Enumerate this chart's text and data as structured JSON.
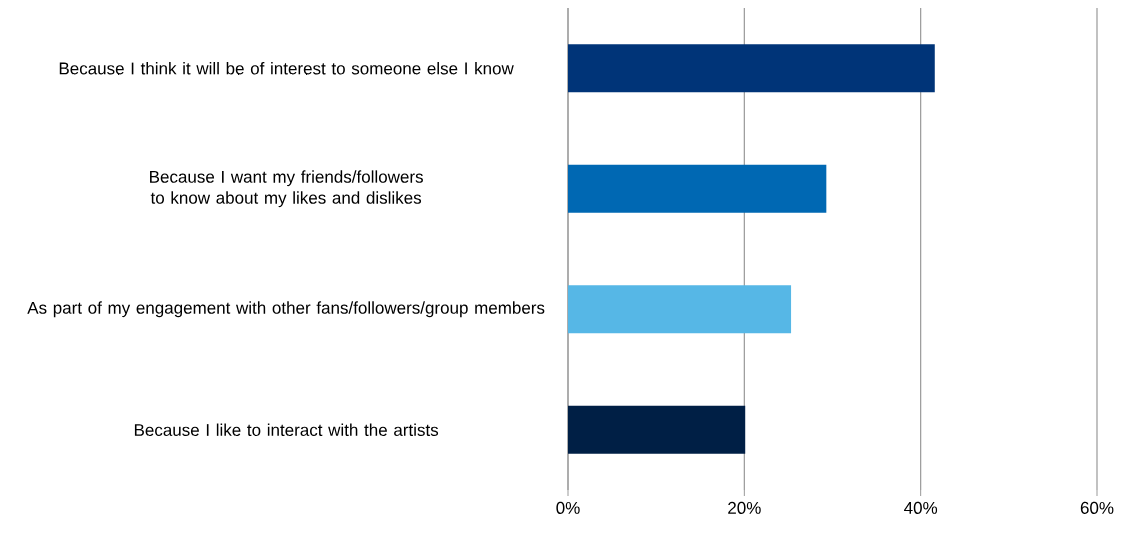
{
  "chart_data": {
    "type": "bar",
    "orientation": "horizontal",
    "categories": [
      "Because I think it will be of interest to someone else I know",
      "Because I want my friends/followers to know about my likes and dislikes",
      "As part of my engagement with other fans/followers/group members",
      "Because I like to interact with the artists"
    ],
    "values": [
      41.6,
      29.3,
      25.3,
      20.1
    ],
    "colors": [
      "#003478",
      "#0068b3",
      "#56b7e6",
      "#001f45"
    ],
    "xlim": [
      0,
      60
    ],
    "xticks": [
      {
        "value": 0,
        "label": "0%"
      },
      {
        "value": 20,
        "label": "20%"
      },
      {
        "value": 40,
        "label": "40%"
      },
      {
        "value": 60,
        "label": "60%"
      }
    ],
    "grid": "x"
  }
}
